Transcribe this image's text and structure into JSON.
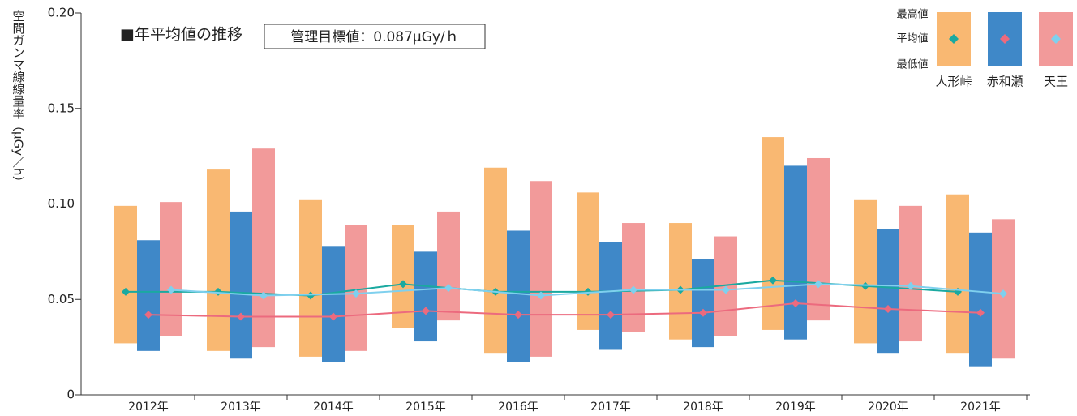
{
  "chart_data": {
    "type": "range-bar",
    "title": "■年平均値の推移",
    "annotation": "管理目標値：0.087μGy/ｈ",
    "y_label": "空間ガンマ線線量率（μGy／h）",
    "legend_labels": [
      "最高値",
      "平均値",
      "最低値"
    ],
    "categories": [
      "2012年",
      "2013年",
      "2014年",
      "2015年",
      "2016年",
      "2017年",
      "2018年",
      "2019年",
      "2020年",
      "2021年"
    ],
    "series": [
      {
        "name": "人形峠",
        "color": "#f9b872",
        "avg_color": "#1aa9a0",
        "max": [
          0.099,
          0.118,
          0.102,
          0.089,
          0.119,
          0.106,
          0.09,
          0.135,
          0.102,
          0.105
        ],
        "min": [
          0.027,
          0.023,
          0.02,
          0.035,
          0.022,
          0.034,
          0.029,
          0.034,
          0.027,
          0.022
        ],
        "avg": [
          0.054,
          0.054,
          0.052,
          0.058,
          0.054,
          0.054,
          0.055,
          0.06,
          0.057,
          0.054
        ]
      },
      {
        "name": "赤和瀬",
        "color": "#3f88c8",
        "avg_color": "#ec6a7e",
        "max": [
          0.081,
          0.096,
          0.078,
          0.075,
          0.086,
          0.08,
          0.071,
          0.12,
          0.087,
          0.085
        ],
        "min": [
          0.023,
          0.019,
          0.017,
          0.028,
          0.017,
          0.024,
          0.025,
          0.029,
          0.022,
          0.015
        ],
        "avg": [
          0.042,
          0.041,
          0.041,
          0.044,
          0.042,
          0.042,
          0.043,
          0.048,
          0.045,
          0.043
        ]
      },
      {
        "name": "天王",
        "color": "#f29a9a",
        "avg_color": "#7fd0ee",
        "max": [
          0.101,
          0.129,
          0.089,
          0.096,
          0.112,
          0.09,
          0.083,
          0.124,
          0.099,
          0.092
        ],
        "min": [
          0.031,
          0.025,
          0.023,
          0.039,
          0.02,
          0.033,
          0.031,
          0.039,
          0.028,
          0.019
        ],
        "avg": [
          0.055,
          0.052,
          0.053,
          0.056,
          0.052,
          0.055,
          0.055,
          0.058,
          0.057,
          0.053
        ]
      }
    ],
    "ylim": [
      0,
      0.2
    ],
    "yticks": [
      0,
      0.05,
      {
        "value": 0.1,
        "label": "0.10"
      },
      0.15,
      {
        "value": 0.2,
        "label": "0.20"
      }
    ]
  }
}
